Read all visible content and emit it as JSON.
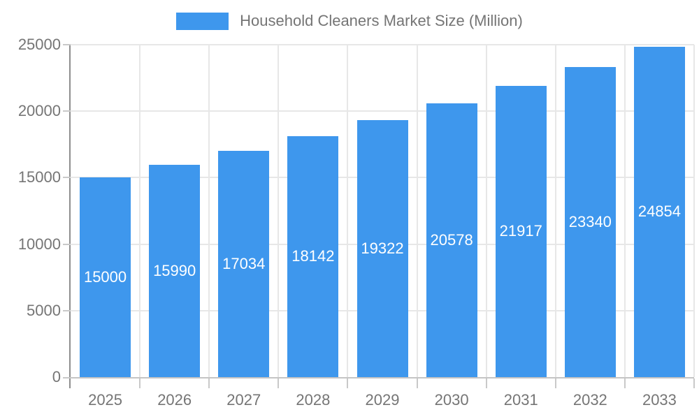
{
  "chart_data": {
    "type": "bar",
    "title": "Household Cleaners Market Size (Million)",
    "categories": [
      "2025",
      "2026",
      "2027",
      "2028",
      "2029",
      "2030",
      "2031",
      "2032",
      "2033"
    ],
    "series": [
      {
        "name": "Household Cleaners Market Size (Million)",
        "values": [
          15000,
          15990,
          17034,
          18142,
          19322,
          20578,
          21917,
          23340,
          24854
        ]
      }
    ],
    "xlabel": "",
    "ylabel": "",
    "ylim": [
      0,
      25000
    ],
    "yticks": [
      0,
      5000,
      10000,
      15000,
      20000,
      25000
    ],
    "grid": true,
    "legend_position": "top",
    "value_labels": "inside-bar-centered",
    "colors": {
      "bar": "#3E97ED",
      "axis_text": "#757575",
      "grid": "#E7E7E7",
      "y_axis": "#8E8E8E",
      "x_axis": "#C4C4C4",
      "tick": "#C9C9C9",
      "value_text": "#FFFFFF",
      "background": "#FFFFFF"
    }
  }
}
